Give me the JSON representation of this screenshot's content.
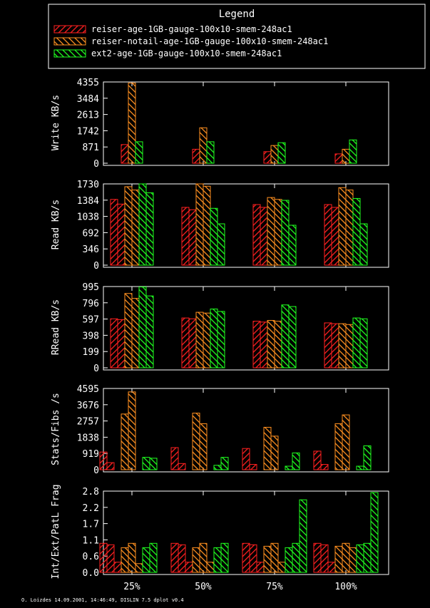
{
  "legend": {
    "title": "Legend",
    "entries": [
      {
        "label": "reiser-age-1GB-gauge-100x10-smem-248ac1",
        "color": "#ff2020"
      },
      {
        "label": "reiser-notail-age-1GB-gauge-100x10-smem-248ac1",
        "color": "#ff9020"
      },
      {
        "label": "ext2-age-1GB-gauge-100x10-smem-248ac1",
        "color": "#20ff20"
      }
    ]
  },
  "footer": "O. Loizdes 14.09.2001, 14:46:49, DISLIN 7.5 dplot v0.4",
  "chart_data": [
    {
      "type": "bar",
      "ylabel": "Write KB/s",
      "categories": [
        "25%",
        "50%",
        "75%",
        "100%"
      ],
      "yticks": [
        "0",
        "871",
        "1742",
        "2613",
        "3484",
        "4355"
      ],
      "ylim": [
        0,
        4355
      ],
      "bars_per_series": 1,
      "series": [
        {
          "values": [
            [
              1000
            ],
            [
              750
            ],
            [
              620
            ],
            [
              500
            ]
          ]
        },
        {
          "values": [
            [
              4300
            ],
            [
              1900
            ],
            [
              950
            ],
            [
              750
            ]
          ]
        },
        {
          "values": [
            [
              1150
            ],
            [
              1150
            ],
            [
              1100
            ],
            [
              1250
            ]
          ]
        }
      ]
    },
    {
      "type": "bar",
      "ylabel": "Read KB/s",
      "categories": [
        "25%",
        "50%",
        "75%",
        "100%"
      ],
      "yticks": [
        "0",
        "346",
        "692",
        "1038",
        "1384",
        "1730"
      ],
      "ylim": [
        0,
        1730
      ],
      "bars_per_series": 2,
      "series": [
        {
          "values": [
            [
              1400,
              1300
            ],
            [
              1230,
              1180
            ],
            [
              1290,
              1230
            ],
            [
              1290,
              1230
            ]
          ]
        },
        {
          "values": [
            [
              1670,
              1600
            ],
            [
              1730,
              1680
            ],
            [
              1440,
              1400
            ],
            [
              1650,
              1600
            ]
          ]
        },
        {
          "values": [
            [
              1730,
              1540
            ],
            [
              1210,
              880
            ],
            [
              1380,
              850
            ],
            [
              1420,
              880
            ]
          ]
        }
      ]
    },
    {
      "type": "bar",
      "ylabel": "RRead KB/s",
      "categories": [
        "25%",
        "50%",
        "75%",
        "100%"
      ],
      "yticks": [
        "0",
        "199",
        "398",
        "597",
        "796",
        "995"
      ],
      "ylim": [
        0,
        995
      ],
      "bars_per_series": 2,
      "series": [
        {
          "values": [
            [
              600,
              590
            ],
            [
              610,
              600
            ],
            [
              570,
              560
            ],
            [
              550,
              540
            ]
          ]
        },
        {
          "values": [
            [
              910,
              850
            ],
            [
              680,
              670
            ],
            [
              580,
              570
            ],
            [
              540,
              530
            ]
          ]
        },
        {
          "values": [
            [
              990,
              880
            ],
            [
              720,
              690
            ],
            [
              770,
              750
            ],
            [
              610,
              600
            ]
          ]
        }
      ]
    },
    {
      "type": "bar",
      "ylabel": "Stats/Fibs /s",
      "categories": [
        "25%",
        "50%",
        "75%",
        "100%"
      ],
      "yticks": [
        "0",
        "919",
        "1838",
        "2757",
        "3676",
        "4595"
      ],
      "ylim": [
        0,
        4595
      ],
      "bars_per_series": 3,
      "series": [
        {
          "values": [
            [
              1000,
              400,
              0
            ],
            [
              1250,
              350,
              0
            ],
            [
              1200,
              300,
              0
            ],
            [
              1050,
              300,
              0
            ]
          ]
        },
        {
          "values": [
            [
              3150,
              4400,
              0
            ],
            [
              3200,
              2600,
              0
            ],
            [
              2400,
              1900,
              0
            ],
            [
              2600,
              3100,
              0
            ]
          ]
        },
        {
          "values": [
            [
              700,
              650,
              0
            ],
            [
              250,
              700,
              0
            ],
            [
              200,
              950,
              0
            ],
            [
              200,
              1350,
              0
            ]
          ]
        }
      ]
    },
    {
      "type": "bar",
      "ylabel": "Int/Ext/PatL Frag",
      "categories": [
        "25%",
        "50%",
        "75%",
        "100%"
      ],
      "yticks": [
        "0.0",
        "0.6",
        "1.1",
        "1.7",
        "2.2",
        "2.8"
      ],
      "ylim": [
        0,
        2.8
      ],
      "bars_per_series": 3,
      "series": [
        {
          "values": [
            [
              1.0,
              0.95,
              0.35
            ],
            [
              1.0,
              0.95,
              0.35
            ],
            [
              1.0,
              0.95,
              0.35
            ],
            [
              1.0,
              0.95,
              0.35
            ]
          ]
        },
        {
          "values": [
            [
              0.85,
              1.0,
              0.3
            ],
            [
              0.85,
              1.0,
              0.35
            ],
            [
              0.9,
              1.0,
              0.35
            ],
            [
              0.9,
              1.0,
              0.85
            ]
          ]
        },
        {
          "values": [
            [
              0.85,
              1.0,
              0.0
            ],
            [
              0.85,
              1.0,
              0.0
            ],
            [
              0.85,
              1.0,
              2.5
            ],
            [
              0.95,
              1.0,
              2.75
            ]
          ]
        }
      ]
    }
  ]
}
